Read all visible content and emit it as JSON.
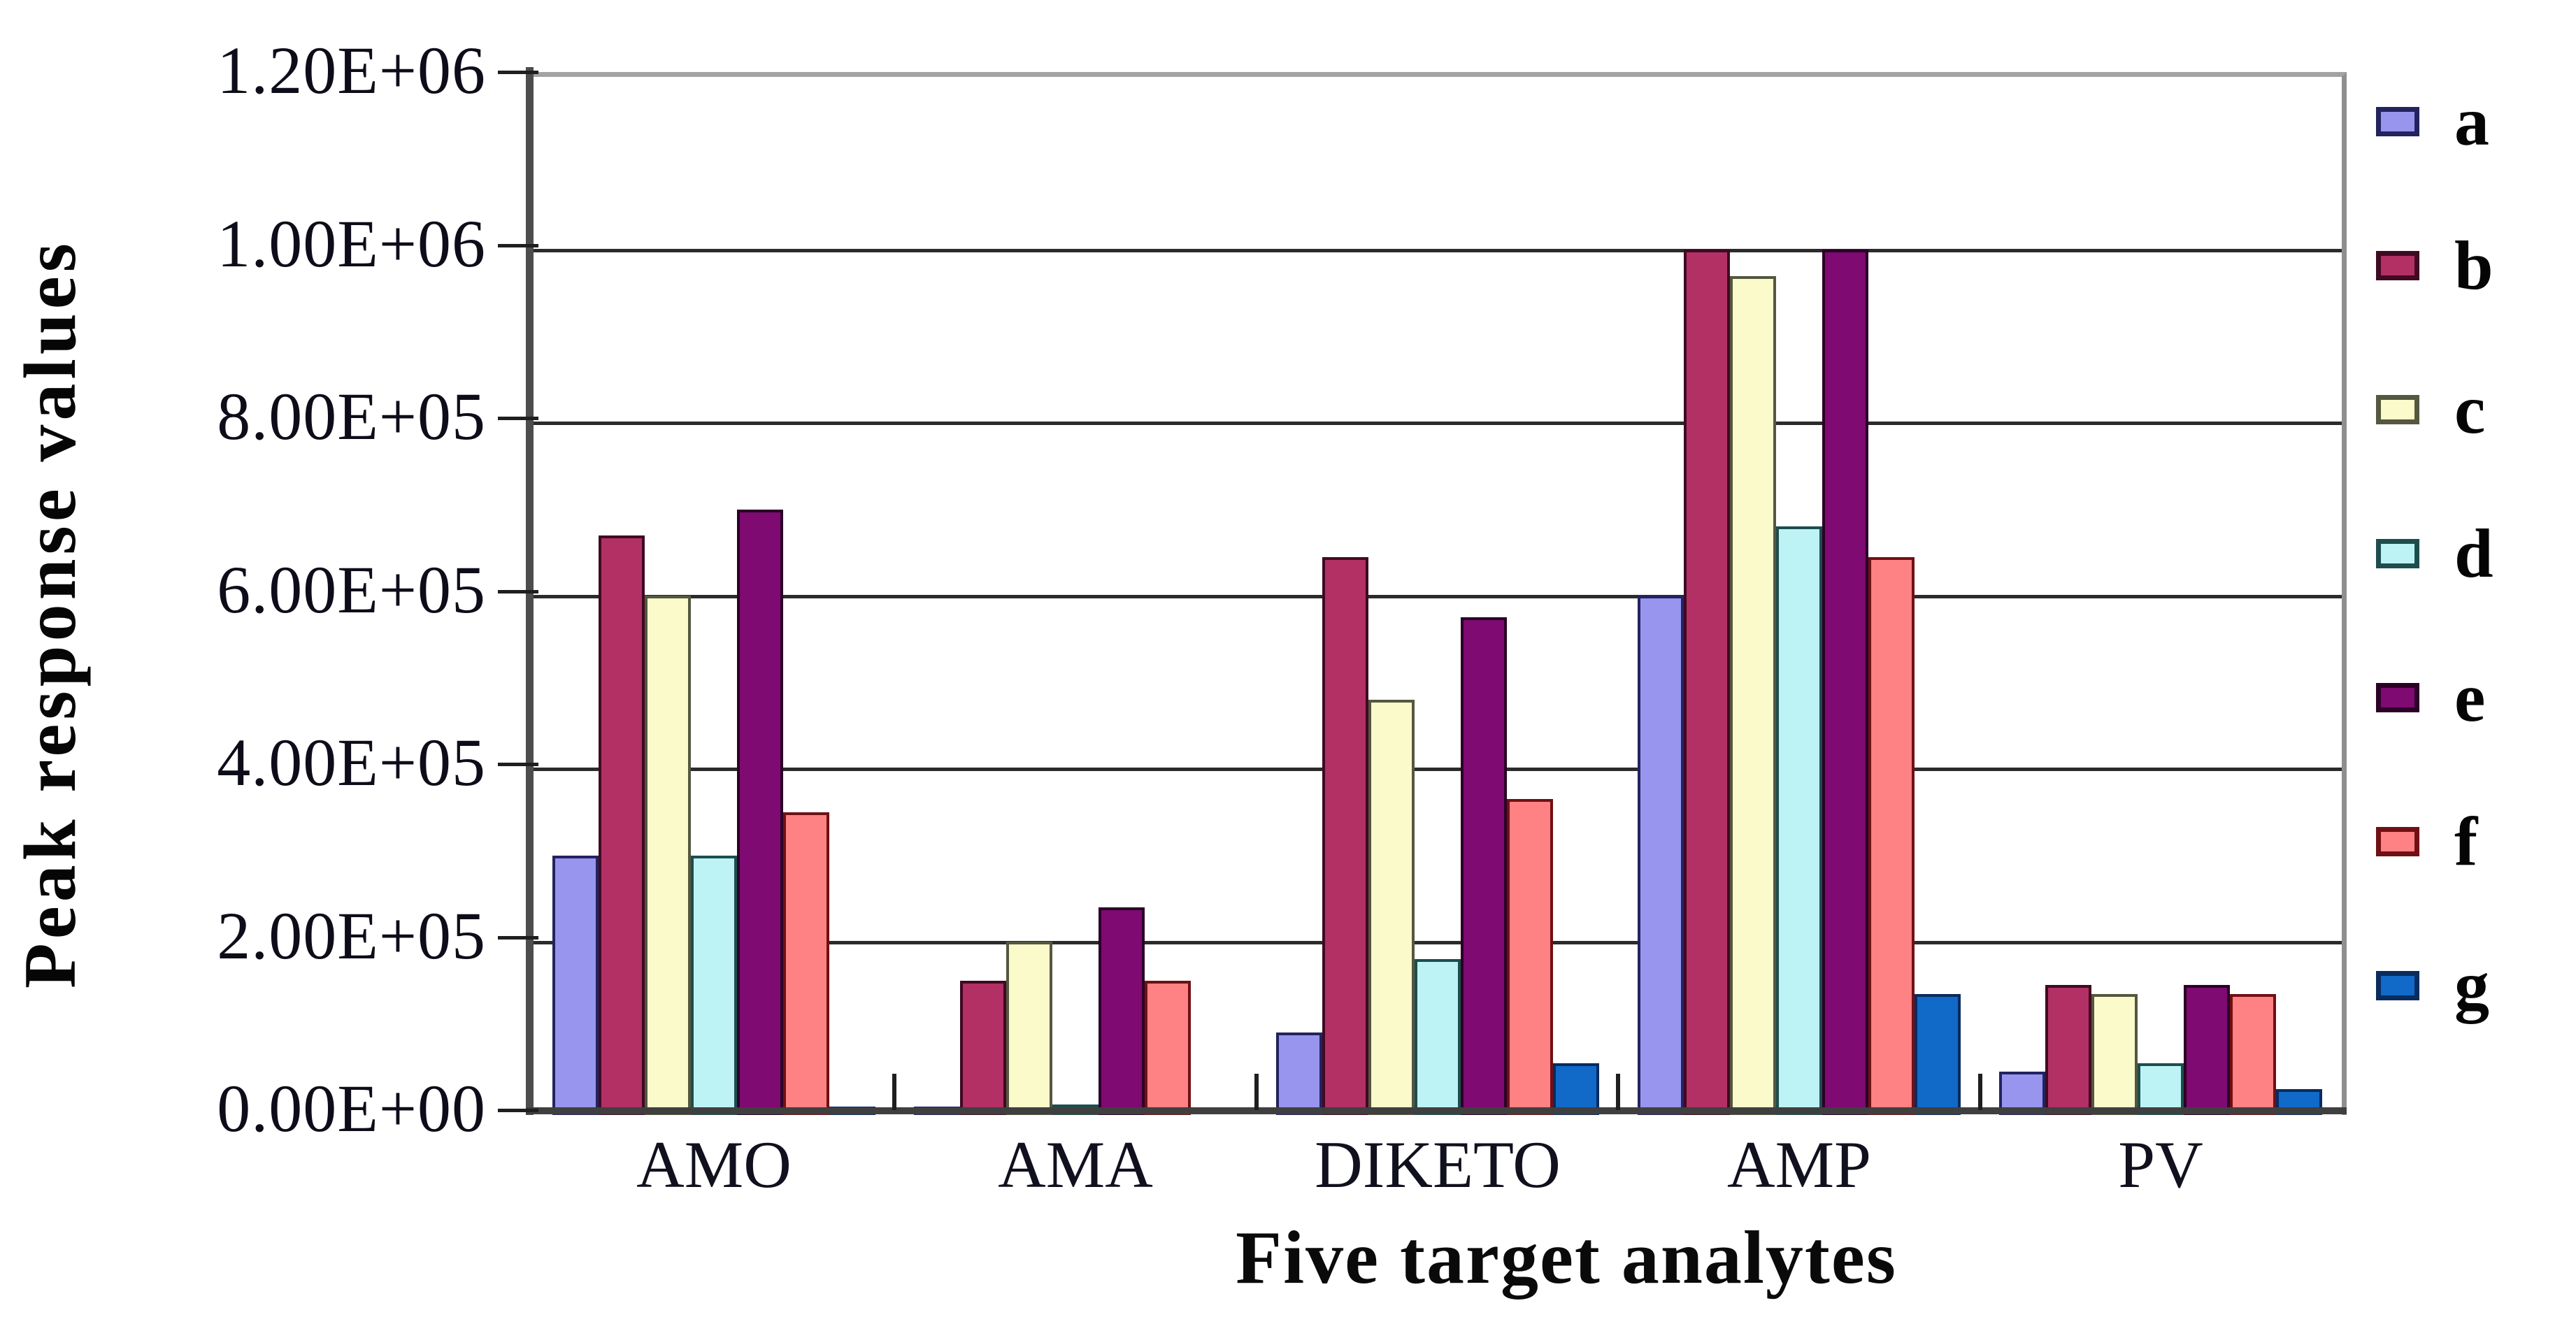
{
  "chart_data": {
    "type": "bar",
    "xlabel": "Five target analytes",
    "ylabel": "Peak response values",
    "categories": [
      "AMO",
      "AMA",
      "DIKETO",
      "AMP",
      "PV"
    ],
    "series": [
      {
        "name": "a",
        "color": "#9795ee",
        "border": "#23235f",
        "values": [
          300000,
          10000,
          95000,
          600000,
          50000
        ]
      },
      {
        "name": "b",
        "color": "#b23064",
        "border": "#3f0a22",
        "values": [
          670000,
          155000,
          645000,
          1000000,
          150000
        ]
      },
      {
        "name": "c",
        "color": "#fbfacb",
        "border": "#55573f",
        "values": [
          600000,
          200000,
          480000,
          970000,
          140000
        ]
      },
      {
        "name": "d",
        "color": "#bdf3f5",
        "border": "#1e4d4d",
        "values": [
          300000,
          12000,
          180000,
          680000,
          60000
        ]
      },
      {
        "name": "e",
        "color": "#7e0a72",
        "border": "#2b0126",
        "values": [
          700000,
          240000,
          575000,
          1000000,
          150000
        ]
      },
      {
        "name": "f",
        "color": "#fe8183",
        "border": "#701014",
        "values": [
          350000,
          155000,
          365000,
          645000,
          140000
        ]
      },
      {
        "name": "g",
        "color": "#1169c8",
        "border": "#092b5e",
        "values": [
          10000,
          0,
          60000,
          140000,
          30000
        ]
      }
    ],
    "y_ticks": [
      {
        "value": 0,
        "label": "0.00E+00"
      },
      {
        "value": 200000,
        "label": "2.00E+05"
      },
      {
        "value": 400000,
        "label": "4.00E+05"
      },
      {
        "value": 600000,
        "label": "6.00E+05"
      },
      {
        "value": 800000,
        "label": "8.00E+05"
      },
      {
        "value": 1000000,
        "label": "1.00E+06"
      },
      {
        "value": 1200000,
        "label": "1.20E+06"
      }
    ],
    "ylim": [
      0,
      1200000
    ],
    "grid": true,
    "legend_position": "right"
  }
}
